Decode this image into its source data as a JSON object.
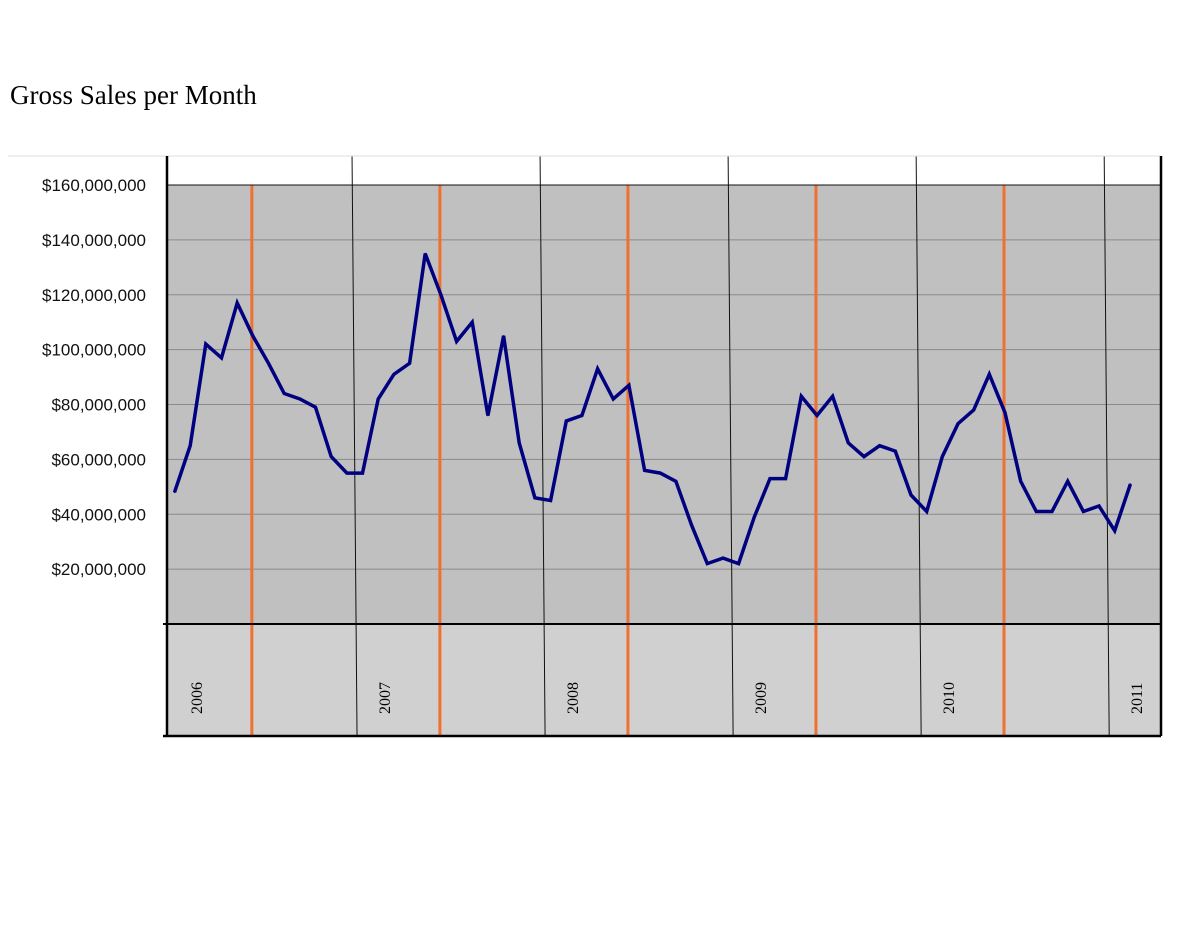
{
  "chart_data": {
    "type": "line",
    "title": "Gross Sales per Month",
    "xlabel": "",
    "ylabel": "",
    "ylim": [
      0,
      160000000
    ],
    "y_ticks": [
      20000000,
      40000000,
      60000000,
      80000000,
      100000000,
      120000000,
      140000000,
      160000000
    ],
    "y_tick_labels": [
      "$20,000,000",
      "$40,000,000",
      "$60,000,000",
      "$80,000,000",
      "$100,000,000",
      "$120,000,000",
      "$140,000,000",
      "$160,000,000"
    ],
    "grid": true,
    "years": [
      "2006",
      "2007",
      "2008",
      "2009",
      "2010",
      "2011"
    ],
    "colors": {
      "line": "#000080",
      "marker_lines": "#f07030",
      "plot_background": "#c0c0c0",
      "axis_band": "#d0d0d0"
    },
    "series": [
      {
        "x": [
          "2006-01",
          "2006-02",
          "2006-03",
          "2006-04",
          "2006-05",
          "2006-06",
          "2006-07",
          "2006-08",
          "2006-09",
          "2006-10",
          "2006-11",
          "2006-12",
          "2007-01",
          "2007-02",
          "2007-03",
          "2007-04",
          "2007-05",
          "2007-06",
          "2007-07",
          "2007-08",
          "2007-09",
          "2007-10",
          "2007-11",
          "2007-12",
          "2008-01",
          "2008-02",
          "2008-03",
          "2008-04",
          "2008-05",
          "2008-06",
          "2008-07",
          "2008-08",
          "2008-09",
          "2008-10",
          "2008-11",
          "2008-12",
          "2009-01",
          "2009-02",
          "2009-03",
          "2009-04",
          "2009-05",
          "2009-06",
          "2009-07",
          "2009-08",
          "2009-09",
          "2009-10",
          "2009-11",
          "2009-12",
          "2010-01",
          "2010-02",
          "2010-03",
          "2010-04",
          "2010-05",
          "2010-06",
          "2010-07",
          "2010-08",
          "2010-09",
          "2010-10",
          "2010-11",
          "2010-12",
          "2011-01",
          "2011-02"
        ],
        "values": [
          48000000,
          65000000,
          102000000,
          97000000,
          117000000,
          105000000,
          95000000,
          84000000,
          82000000,
          79000000,
          61000000,
          55000000,
          55000000,
          82000000,
          91000000,
          95000000,
          135000000,
          120000000,
          103000000,
          110000000,
          76000000,
          105000000,
          66000000,
          46000000,
          45000000,
          74000000,
          76000000,
          93000000,
          82000000,
          87000000,
          56000000,
          55000000,
          52000000,
          36000000,
          22000000,
          24000000,
          22000000,
          39000000,
          53000000,
          53000000,
          83000000,
          76000000,
          83000000,
          66000000,
          61000000,
          65000000,
          63000000,
          47000000,
          41000000,
          61000000,
          73000000,
          78000000,
          91000000,
          77000000,
          52000000,
          41000000,
          41000000,
          52000000,
          41000000,
          43000000,
          34000000,
          51000000
        ]
      }
    ],
    "marker_months": [
      "2006-06",
      "2007-06",
      "2008-06",
      "2009-06",
      "2010-06"
    ]
  }
}
